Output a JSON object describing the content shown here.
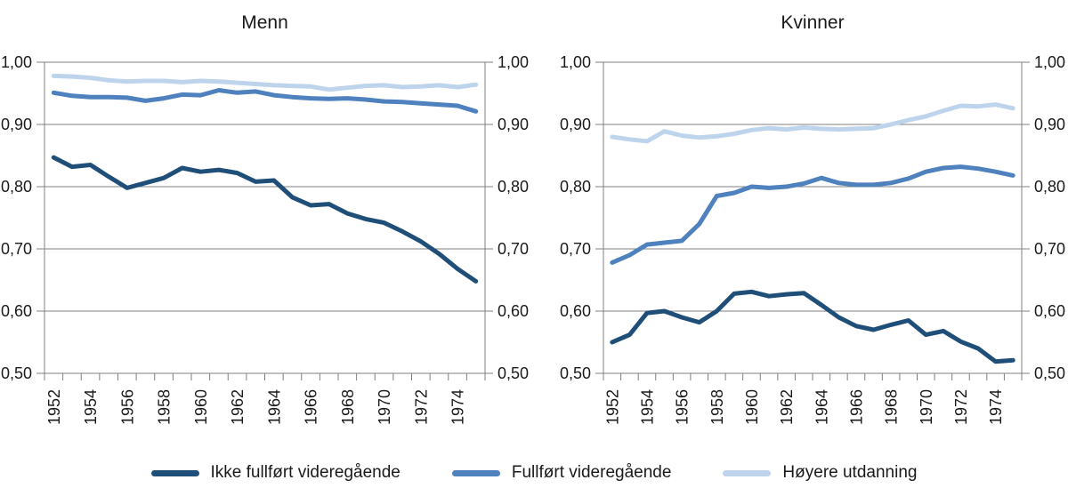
{
  "colors": {
    "dark_blue": "#1F4E79",
    "medium_blue": "#4E81BD",
    "light_blue": "#BDD4EC",
    "grid": "#808080",
    "text": "#1A1A1A",
    "background": "#FFFFFF"
  },
  "legend": {
    "items": [
      {
        "label": "Ikke fullført videregående",
        "color": "dark_blue"
      },
      {
        "label": "Fullført videregående",
        "color": "medium_blue"
      },
      {
        "label": "Høyere utdanning",
        "color": "light_blue"
      }
    ]
  },
  "chart_data": [
    {
      "type": "line",
      "title": "Menn",
      "ylim": [
        0.5,
        1.0
      ],
      "grid": true,
      "y_ticks": [
        {
          "v": 1.0,
          "label": "1,00"
        },
        {
          "v": 0.9,
          "label": "0,90"
        },
        {
          "v": 0.8,
          "label": "0,80"
        },
        {
          "v": 0.7,
          "label": "0,70"
        },
        {
          "v": 0.6,
          "label": "0,60"
        },
        {
          "v": 0.5,
          "label": "0,50"
        }
      ],
      "x_tick_labels": [
        "1952",
        "1954",
        "1956",
        "1958",
        "1960",
        "1962",
        "1964",
        "1966",
        "1968",
        "1970",
        "1972",
        "1974"
      ],
      "years": [
        1952,
        1953,
        1954,
        1955,
        1956,
        1957,
        1958,
        1959,
        1960,
        1961,
        1962,
        1963,
        1964,
        1965,
        1966,
        1967,
        1968,
        1969,
        1970,
        1971,
        1972,
        1973,
        1974,
        1975
      ],
      "series": [
        {
          "name": "Ikke fullført videregående",
          "color": "dark_blue",
          "values": [
            0.847,
            0.832,
            0.835,
            0.816,
            0.798,
            0.806,
            0.814,
            0.83,
            0.824,
            0.827,
            0.822,
            0.808,
            0.81,
            0.783,
            0.77,
            0.772,
            0.757,
            0.748,
            0.742,
            0.728,
            0.712,
            0.692,
            0.668,
            0.648
          ]
        },
        {
          "name": "Fullført videregående",
          "color": "medium_blue",
          "values": [
            0.951,
            0.946,
            0.944,
            0.944,
            0.943,
            0.938,
            0.942,
            0.948,
            0.947,
            0.955,
            0.951,
            0.953,
            0.947,
            0.944,
            0.942,
            0.941,
            0.942,
            0.94,
            0.937,
            0.936,
            0.934,
            0.932,
            0.93,
            0.921
          ]
        },
        {
          "name": "Høyere utdanning",
          "color": "light_blue",
          "values": [
            0.978,
            0.977,
            0.975,
            0.971,
            0.969,
            0.97,
            0.97,
            0.968,
            0.97,
            0.969,
            0.967,
            0.965,
            0.963,
            0.962,
            0.961,
            0.956,
            0.959,
            0.962,
            0.963,
            0.96,
            0.961,
            0.963,
            0.96,
            0.964
          ]
        }
      ]
    },
    {
      "type": "line",
      "title": "Kvinner",
      "ylim": [
        0.5,
        1.0
      ],
      "grid": true,
      "y_ticks": [
        {
          "v": 1.0,
          "label": "1,00"
        },
        {
          "v": 0.9,
          "label": "0,90"
        },
        {
          "v": 0.8,
          "label": "0,80"
        },
        {
          "v": 0.7,
          "label": "0,70"
        },
        {
          "v": 0.6,
          "label": "0,60"
        },
        {
          "v": 0.5,
          "label": "0,50"
        }
      ],
      "x_tick_labels": [
        "1952",
        "1954",
        "1956",
        "1958",
        "1960",
        "1962",
        "1964",
        "1966",
        "1968",
        "1970",
        "1972",
        "1974"
      ],
      "years": [
        1952,
        1953,
        1954,
        1955,
        1956,
        1957,
        1958,
        1959,
        1960,
        1961,
        1962,
        1963,
        1964,
        1965,
        1966,
        1967,
        1968,
        1969,
        1970,
        1971,
        1972,
        1973,
        1974,
        1975
      ],
      "series": [
        {
          "name": "Ikke fullført videregående",
          "color": "dark_blue",
          "values": [
            0.55,
            0.562,
            0.597,
            0.6,
            0.59,
            0.582,
            0.6,
            0.628,
            0.631,
            0.624,
            0.627,
            0.629,
            0.61,
            0.59,
            0.576,
            0.57,
            0.578,
            0.585,
            0.562,
            0.568,
            0.551,
            0.54,
            0.519,
            0.521
          ]
        },
        {
          "name": "Fullført videregående",
          "color": "medium_blue",
          "values": [
            0.678,
            0.69,
            0.707,
            0.71,
            0.713,
            0.74,
            0.785,
            0.79,
            0.8,
            0.798,
            0.8,
            0.805,
            0.814,
            0.806,
            0.803,
            0.803,
            0.806,
            0.813,
            0.824,
            0.83,
            0.832,
            0.829,
            0.824,
            0.818
          ]
        },
        {
          "name": "Høyere utdanning",
          "color": "light_blue",
          "values": [
            0.88,
            0.876,
            0.873,
            0.889,
            0.882,
            0.879,
            0.881,
            0.885,
            0.891,
            0.894,
            0.892,
            0.895,
            0.893,
            0.892,
            0.893,
            0.894,
            0.9,
            0.907,
            0.913,
            0.922,
            0.93,
            0.929,
            0.932,
            0.926
          ]
        }
      ]
    }
  ]
}
